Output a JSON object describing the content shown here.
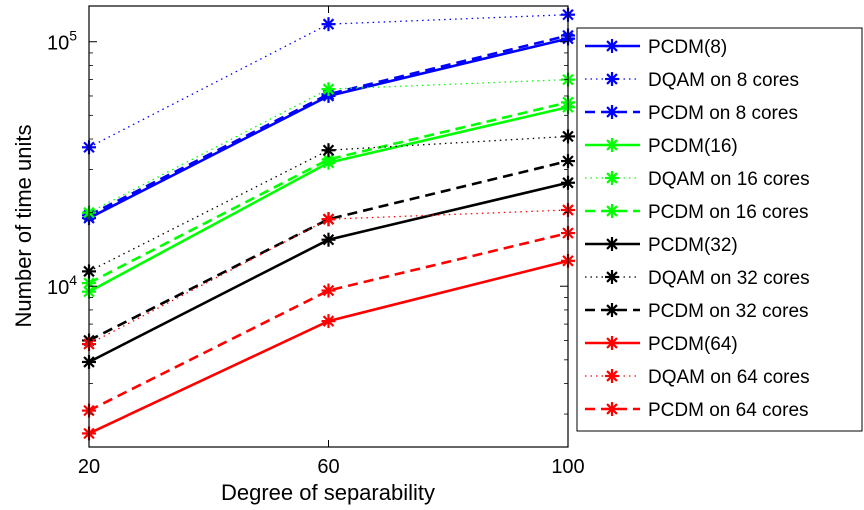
{
  "chart_data": {
    "type": "line",
    "xlabel": "Degree of separability",
    "ylabel": "Number of time units",
    "x": [
      20,
      60,
      100
    ],
    "xlim": [
      20,
      100
    ],
    "ylim": [
      2200,
      140000
    ],
    "yscale": "log",
    "xticks": [
      "20",
      "60",
      "100"
    ],
    "yticks": [
      {
        "value": 10000,
        "base": "10",
        "exp": "4"
      },
      {
        "value": 100000,
        "base": "10",
        "exp": "5"
      }
    ],
    "grid": false,
    "legend_position": "right-outside",
    "series": [
      {
        "name": "PCDM(8)",
        "color": "#0000ff",
        "style": "solid",
        "values": [
          19000,
          60000,
          103000
        ]
      },
      {
        "name": "DQAM on 8 cores",
        "color": "#0000ff",
        "style": "dotted",
        "values": [
          37000,
          118000,
          129000
        ]
      },
      {
        "name": "PCDM on 8 cores",
        "color": "#0000ff",
        "style": "dashed",
        "values": [
          19500,
          61000,
          106000
        ]
      },
      {
        "name": "PCDM(16)",
        "color": "#00ff00",
        "style": "solid",
        "values": [
          9500,
          32000,
          54000
        ]
      },
      {
        "name": "DQAM on 16 cores",
        "color": "#00ff00",
        "style": "dotted",
        "values": [
          20000,
          64000,
          70000
        ]
      },
      {
        "name": "PCDM on 16 cores",
        "color": "#00ff00",
        "style": "dashed",
        "values": [
          10300,
          33000,
          56500
        ]
      },
      {
        "name": "PCDM(32)",
        "color": "#000000",
        "style": "solid",
        "values": [
          4900,
          15500,
          26500
        ]
      },
      {
        "name": "DQAM on 32 cores",
        "color": "#000000",
        "style": "dotted",
        "values": [
          11500,
          36000,
          41000
        ]
      },
      {
        "name": "PCDM on 32 cores",
        "color": "#000000",
        "style": "dashed",
        "values": [
          6000,
          18800,
          32500
        ]
      },
      {
        "name": "PCDM(64)",
        "color": "#ff0000",
        "style": "solid",
        "values": [
          2500,
          7200,
          12700
        ]
      },
      {
        "name": "DQAM on 64 cores",
        "color": "#ff0000",
        "style": "dotted",
        "values": [
          5800,
          18800,
          20500
        ]
      },
      {
        "name": "PCDM on 64 cores",
        "color": "#ff0000",
        "style": "dashed",
        "values": [
          3100,
          9600,
          16500
        ]
      }
    ]
  }
}
